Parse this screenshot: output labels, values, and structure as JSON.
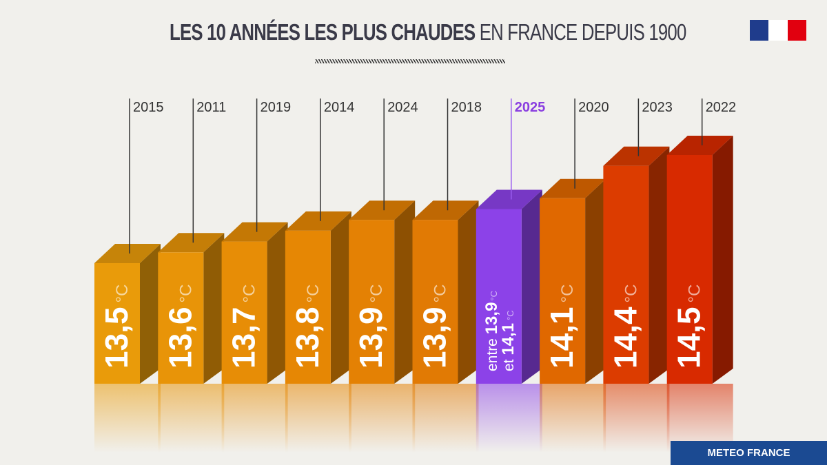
{
  "title": {
    "bold": "LES 10 ANNÉES LES PLUS CHAUDES",
    "light": "EN FRANCE DEPUIS 1900"
  },
  "footer": "METEO FRANCE",
  "unit": "°C",
  "chart_data": {
    "type": "bar",
    "title": "LES 10 ANNÉES LES PLUS CHAUDES EN FRANCE DEPUIS 1900",
    "categories": [
      "2015",
      "2011",
      "2019",
      "2014",
      "2024",
      "2018",
      "2025",
      "2020",
      "2023",
      "2022"
    ],
    "values": [
      13.5,
      13.6,
      13.7,
      13.8,
      13.9,
      13.9,
      null,
      14.1,
      14.4,
      14.5
    ],
    "labels": [
      "13,5",
      "13,6",
      "13,7",
      "13,8",
      "13,9",
      "13,9",
      "",
      "14,1",
      "14,4",
      "14,5"
    ],
    "range_2025": {
      "low": 13.9,
      "high": 14.1,
      "prefix_low": "entre",
      "label_low": "13,9",
      "prefix_high": "et",
      "label_high": "14,1"
    },
    "highlight": "2025",
    "colors": [
      "#e99b0a",
      "#e89408",
      "#e78d06",
      "#e68704",
      "#e48104",
      "#e17a04",
      "#8c42e8",
      "#e06800",
      "#dc3c00",
      "#d82a00"
    ],
    "highlight_text_color": "#8a3ee0"
  }
}
